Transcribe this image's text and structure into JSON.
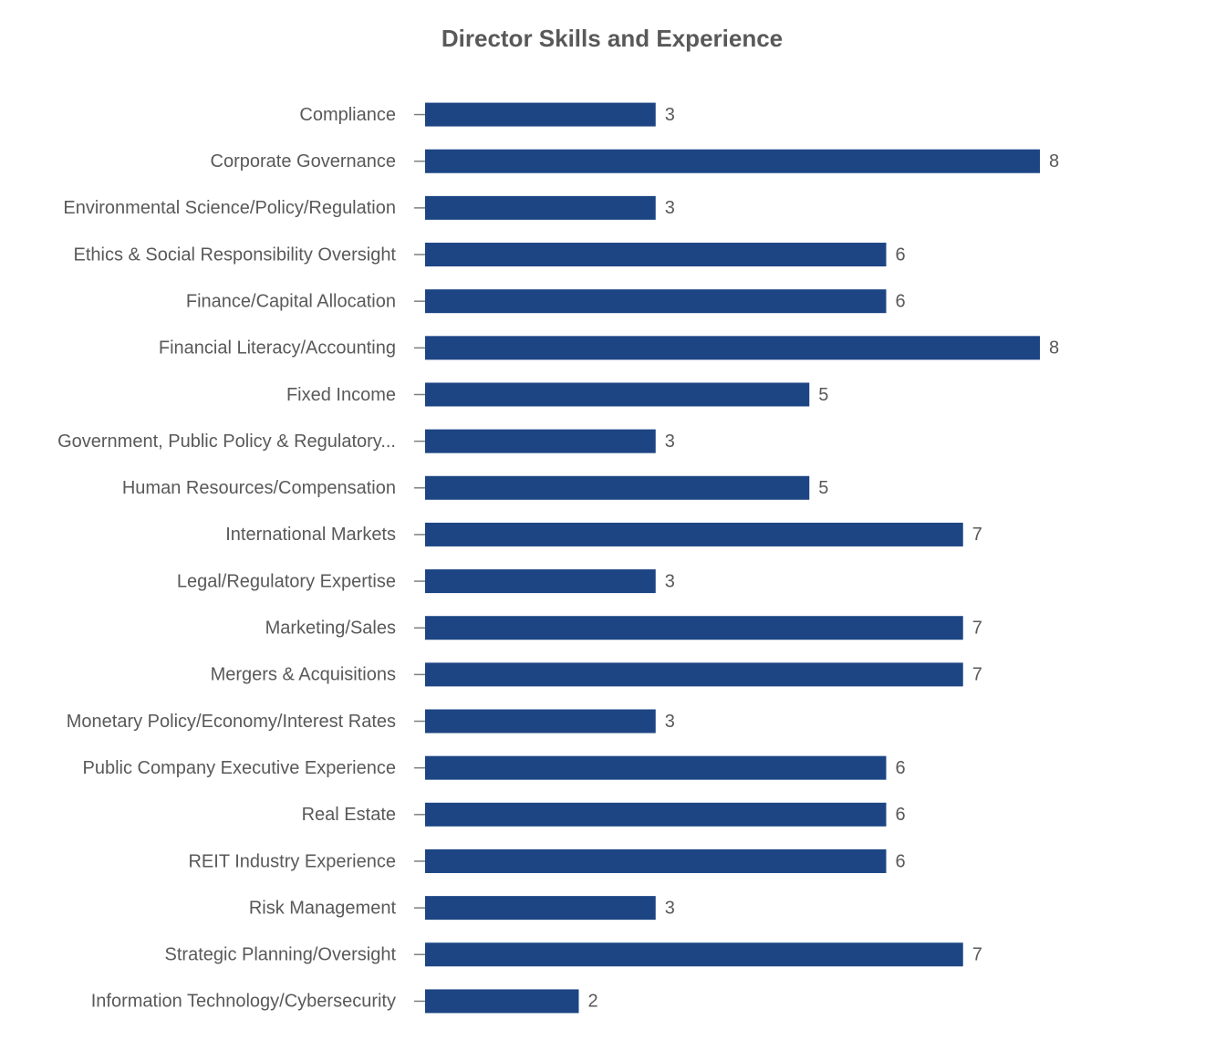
{
  "chart_data": {
    "type": "barh",
    "title": "Director Skills and Experience",
    "categories": [
      "Compliance",
      "Corporate Governance",
      "Environmental Science/Policy/Regulation",
      "Ethics & Social Responsibility Oversight",
      "Finance/Capital Allocation",
      "Financial Literacy/Accounting",
      "Fixed Income",
      "Government, Public Policy & Regulatory...",
      "Human Resources/Compensation",
      "International Markets",
      "Legal/Regulatory Expertise",
      "Marketing/Sales",
      "Mergers & Acquisitions",
      "Monetary Policy/Economy/Interest Rates",
      "Public Company Executive Experience",
      "Real Estate",
      "REIT Industry Experience",
      "Risk Management",
      "Strategic Planning/Oversight",
      "Information Technology/Cybersecurity"
    ],
    "values": [
      3,
      8,
      3,
      6,
      6,
      8,
      5,
      3,
      5,
      7,
      3,
      7,
      7,
      3,
      6,
      6,
      6,
      3,
      7,
      2
    ],
    "color": "#1d4584"
  }
}
